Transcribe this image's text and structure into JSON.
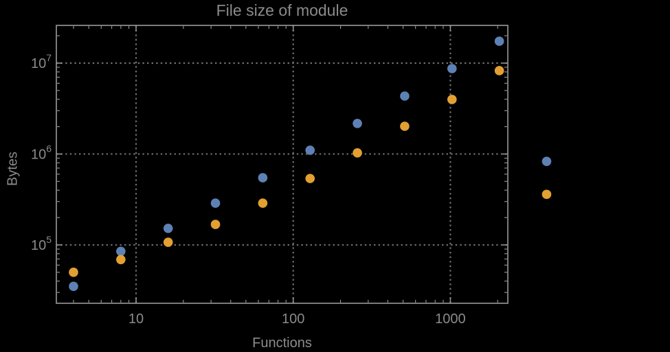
{
  "figure": {
    "title": "File size of module",
    "xlabel": "Functions",
    "ylabel": "Bytes",
    "background_color": "#000000",
    "text_color": "#8b8b8b",
    "frame_color": "#9b9b9b",
    "grid_color": "#707070"
  },
  "chart_data": {
    "type": "scatter",
    "title": "File size of module",
    "xlabel": "Functions",
    "ylabel": "Bytes",
    "xscale": "log",
    "yscale": "log",
    "xlim": [
      3.11,
      2320
    ],
    "ylim": [
      22800,
      26000000
    ],
    "grid": "dotted",
    "legend": "none",
    "x_ticks": [
      10,
      100,
      1000
    ],
    "x_tick_labels": [
      "10",
      "100",
      "1000"
    ],
    "y_ticks": [
      100000,
      1000000,
      10000000
    ],
    "y_tick_labels": [
      "10^5",
      "10^6",
      "10^7"
    ],
    "y_tick_base": "10",
    "y_tick_exponents": [
      5,
      6,
      7
    ],
    "series": [
      {
        "name": "series-1-blue",
        "color": "#5E81B5",
        "marker": "circle",
        "points": [
          [
            4,
            35000
          ],
          [
            8,
            85000
          ],
          [
            16,
            152000
          ],
          [
            32,
            288000
          ],
          [
            64,
            548000
          ],
          [
            128,
            1100000
          ],
          [
            256,
            2170000
          ],
          [
            512,
            4340000
          ],
          [
            1024,
            8700000
          ],
          [
            2048,
            17400000
          ],
          [
            4096,
            830000
          ]
        ]
      },
      {
        "name": "series-2-orange",
        "color": "#E3A032",
        "marker": "circle",
        "points": [
          [
            4,
            50000
          ],
          [
            8,
            69000
          ],
          [
            16,
            107000
          ],
          [
            32,
            168000
          ],
          [
            64,
            288000
          ],
          [
            128,
            538000
          ],
          [
            256,
            1030000
          ],
          [
            512,
            2020000
          ],
          [
            1024,
            3980000
          ],
          [
            2048,
            8260000
          ],
          [
            4096,
            360000
          ]
        ]
      }
    ]
  }
}
